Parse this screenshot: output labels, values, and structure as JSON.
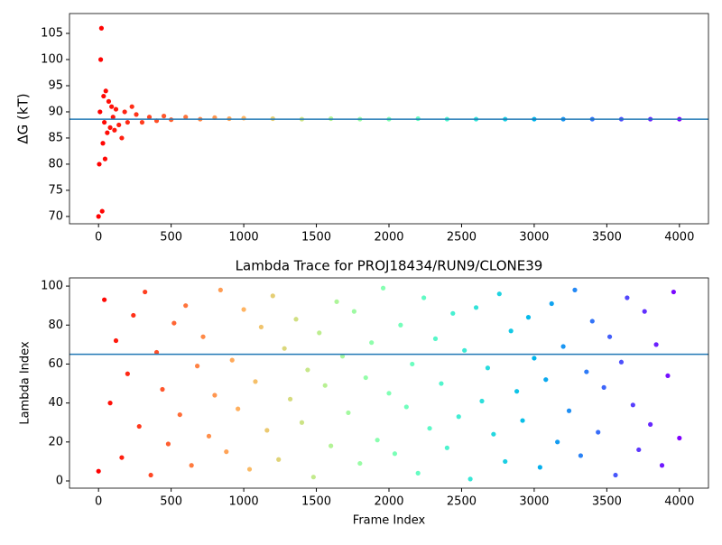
{
  "chart_data": [
    {
      "type": "scatter",
      "ylabel": "ΔG (kT)",
      "colormap": "rainbow_r",
      "x": [
        0,
        5,
        10,
        15,
        20,
        25,
        30,
        35,
        40,
        45,
        50,
        60,
        70,
        80,
        90,
        100,
        110,
        120,
        140,
        160,
        180,
        200,
        230,
        260,
        300,
        350,
        400,
        450,
        500,
        600,
        700,
        800,
        900,
        1000,
        1200,
        1400,
        1600,
        1800,
        2000,
        2200,
        2400,
        2600,
        2800,
        3000,
        3200,
        3400,
        3600,
        3800,
        4000
      ],
      "values": [
        70,
        80,
        90,
        100,
        106,
        71,
        84,
        93,
        88,
        81,
        94,
        86,
        92,
        87,
        91,
        89,
        86.5,
        90.5,
        87.5,
        85,
        90,
        88,
        91,
        89.5,
        88,
        89,
        88.3,
        89.2,
        88.5,
        89,
        88.6,
        88.9,
        88.7,
        88.8,
        88.7,
        88.6,
        88.7,
        88.6,
        88.6,
        88.7,
        88.6,
        88.6,
        88.6,
        88.6,
        88.6,
        88.6,
        88.6,
        88.6,
        88.6
      ],
      "hline": 88.6,
      "hline_color": "#1f77b4",
      "xlim": [
        -200,
        4200
      ],
      "ylim": [
        68.6,
        108.8
      ],
      "xticks": [
        0,
        500,
        1000,
        1500,
        2000,
        2500,
        3000,
        3500,
        4000
      ],
      "yticks": [
        70,
        75,
        80,
        85,
        90,
        95,
        100,
        105
      ]
    },
    {
      "type": "scatter",
      "title": "Lambda Trace for PROJ18434/RUN9/CLONE39",
      "xlabel": "Frame Index",
      "ylabel": "Lambda Index",
      "colormap": "rainbow_r",
      "x": [
        0,
        40,
        80,
        120,
        160,
        200,
        240,
        280,
        320,
        360,
        400,
        440,
        480,
        520,
        560,
        600,
        640,
        680,
        720,
        760,
        800,
        840,
        880,
        920,
        960,
        1000,
        1040,
        1080,
        1120,
        1160,
        1200,
        1240,
        1280,
        1320,
        1360,
        1400,
        1440,
        1480,
        1520,
        1560,
        1600,
        1640,
        1680,
        1720,
        1760,
        1800,
        1840,
        1880,
        1920,
        1960,
        2000,
        2040,
        2080,
        2120,
        2160,
        2200,
        2240,
        2280,
        2320,
        2360,
        2400,
        2440,
        2480,
        2520,
        2560,
        2600,
        2640,
        2680,
        2720,
        2760,
        2800,
        2840,
        2880,
        2920,
        2960,
        3000,
        3040,
        3080,
        3120,
        3160,
        3200,
        3240,
        3280,
        3320,
        3360,
        3400,
        3440,
        3480,
        3520,
        3560,
        3600,
        3640,
        3680,
        3720,
        3760,
        3800,
        3840,
        3880,
        3920,
        3960,
        4000
      ],
      "values": [
        5,
        93,
        40,
        72,
        12,
        55,
        85,
        28,
        97,
        3,
        66,
        47,
        19,
        81,
        34,
        90,
        8,
        59,
        74,
        23,
        44,
        98,
        15,
        62,
        37,
        88,
        6,
        51,
        79,
        26,
        95,
        11,
        68,
        42,
        83,
        30,
        57,
        2,
        76,
        49,
        18,
        92,
        64,
        35,
        87,
        9,
        53,
        71,
        21,
        99,
        45,
        14,
        80,
        38,
        60,
        4,
        94,
        27,
        73,
        50,
        17,
        86,
        33,
        67,
        1,
        89,
        41,
        58,
        24,
        96,
        10,
        77,
        46,
        31,
        84,
        63,
        7,
        52,
        91,
        20,
        69,
        36,
        98,
        13,
        56,
        82,
        25,
        48,
        74,
        3,
        61,
        94,
        39,
        16,
        87,
        29,
        70,
        8,
        54,
        97,
        22
      ],
      "hline": 65,
      "hline_color": "#1f77b4",
      "xlim": [
        -200,
        4200
      ],
      "ylim": [
        -3.7,
        104.2
      ],
      "xticks": [
        0,
        500,
        1000,
        1500,
        2000,
        2500,
        3000,
        3500,
        4000
      ],
      "yticks": [
        0,
        20,
        40,
        60,
        80,
        100
      ]
    }
  ]
}
